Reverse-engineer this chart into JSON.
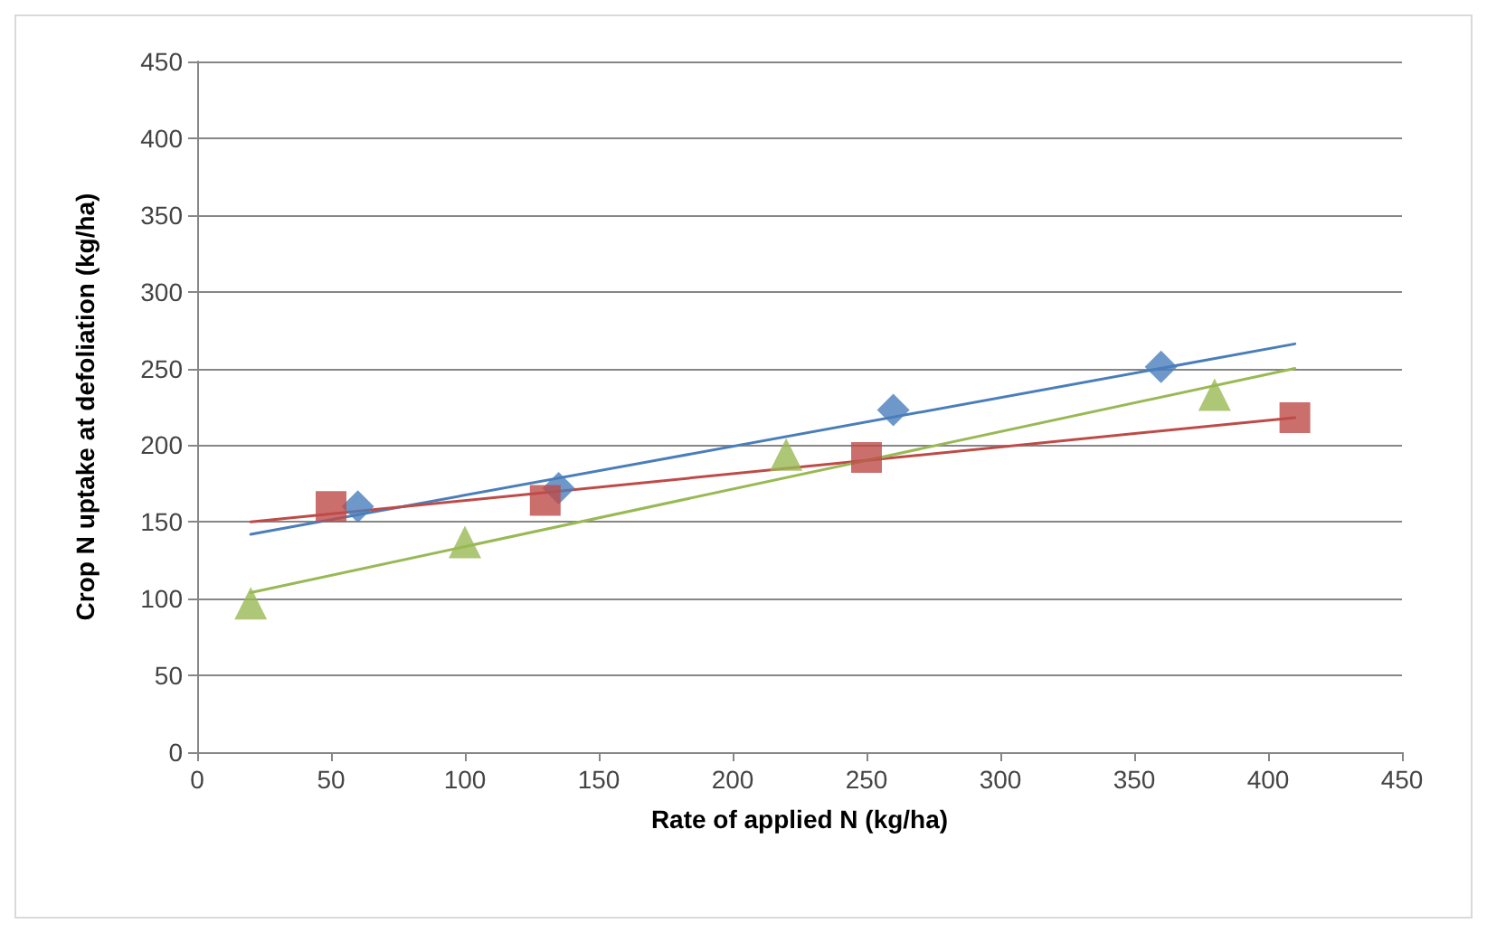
{
  "chart_data": {
    "type": "scatter",
    "xlabel": "Rate of applied N (kg/ha)",
    "ylabel": "Crop N uptake at defoliation (kg/ha)",
    "xlim": [
      0,
      450
    ],
    "xticks": [
      0,
      50,
      100,
      150,
      200,
      250,
      300,
      350,
      400,
      450
    ],
    "ylim": [
      0,
      450
    ],
    "yticks": [
      0,
      50,
      100,
      150,
      200,
      250,
      300,
      350,
      400,
      450
    ],
    "grid": "y",
    "series": [
      {
        "marker": "diamond",
        "color": "#4a7ebb",
        "x": [
          60,
          135,
          260,
          360
        ],
        "values": [
          160,
          172,
          223,
          251
        ]
      },
      {
        "marker": "square",
        "color": "#be4b48",
        "x": [
          50,
          130,
          250,
          410
        ],
        "values": [
          160,
          164,
          192,
          218
        ]
      },
      {
        "marker": "triangle",
        "color": "#98b954",
        "x": [
          20,
          100,
          220,
          380
        ],
        "values": [
          97,
          137,
          194,
          233
        ]
      },
      {
        "type": "line",
        "marker": "none",
        "color": "#4a7ebb",
        "x": [
          20,
          410
        ],
        "values": [
          142,
          266
        ]
      },
      {
        "type": "line",
        "marker": "none",
        "color": "#be4b48",
        "x": [
          20,
          410
        ],
        "values": [
          150,
          218
        ]
      },
      {
        "type": "line",
        "marker": "none",
        "color": "#98b954",
        "x": [
          20,
          410
        ],
        "values": [
          104,
          250
        ]
      }
    ]
  }
}
